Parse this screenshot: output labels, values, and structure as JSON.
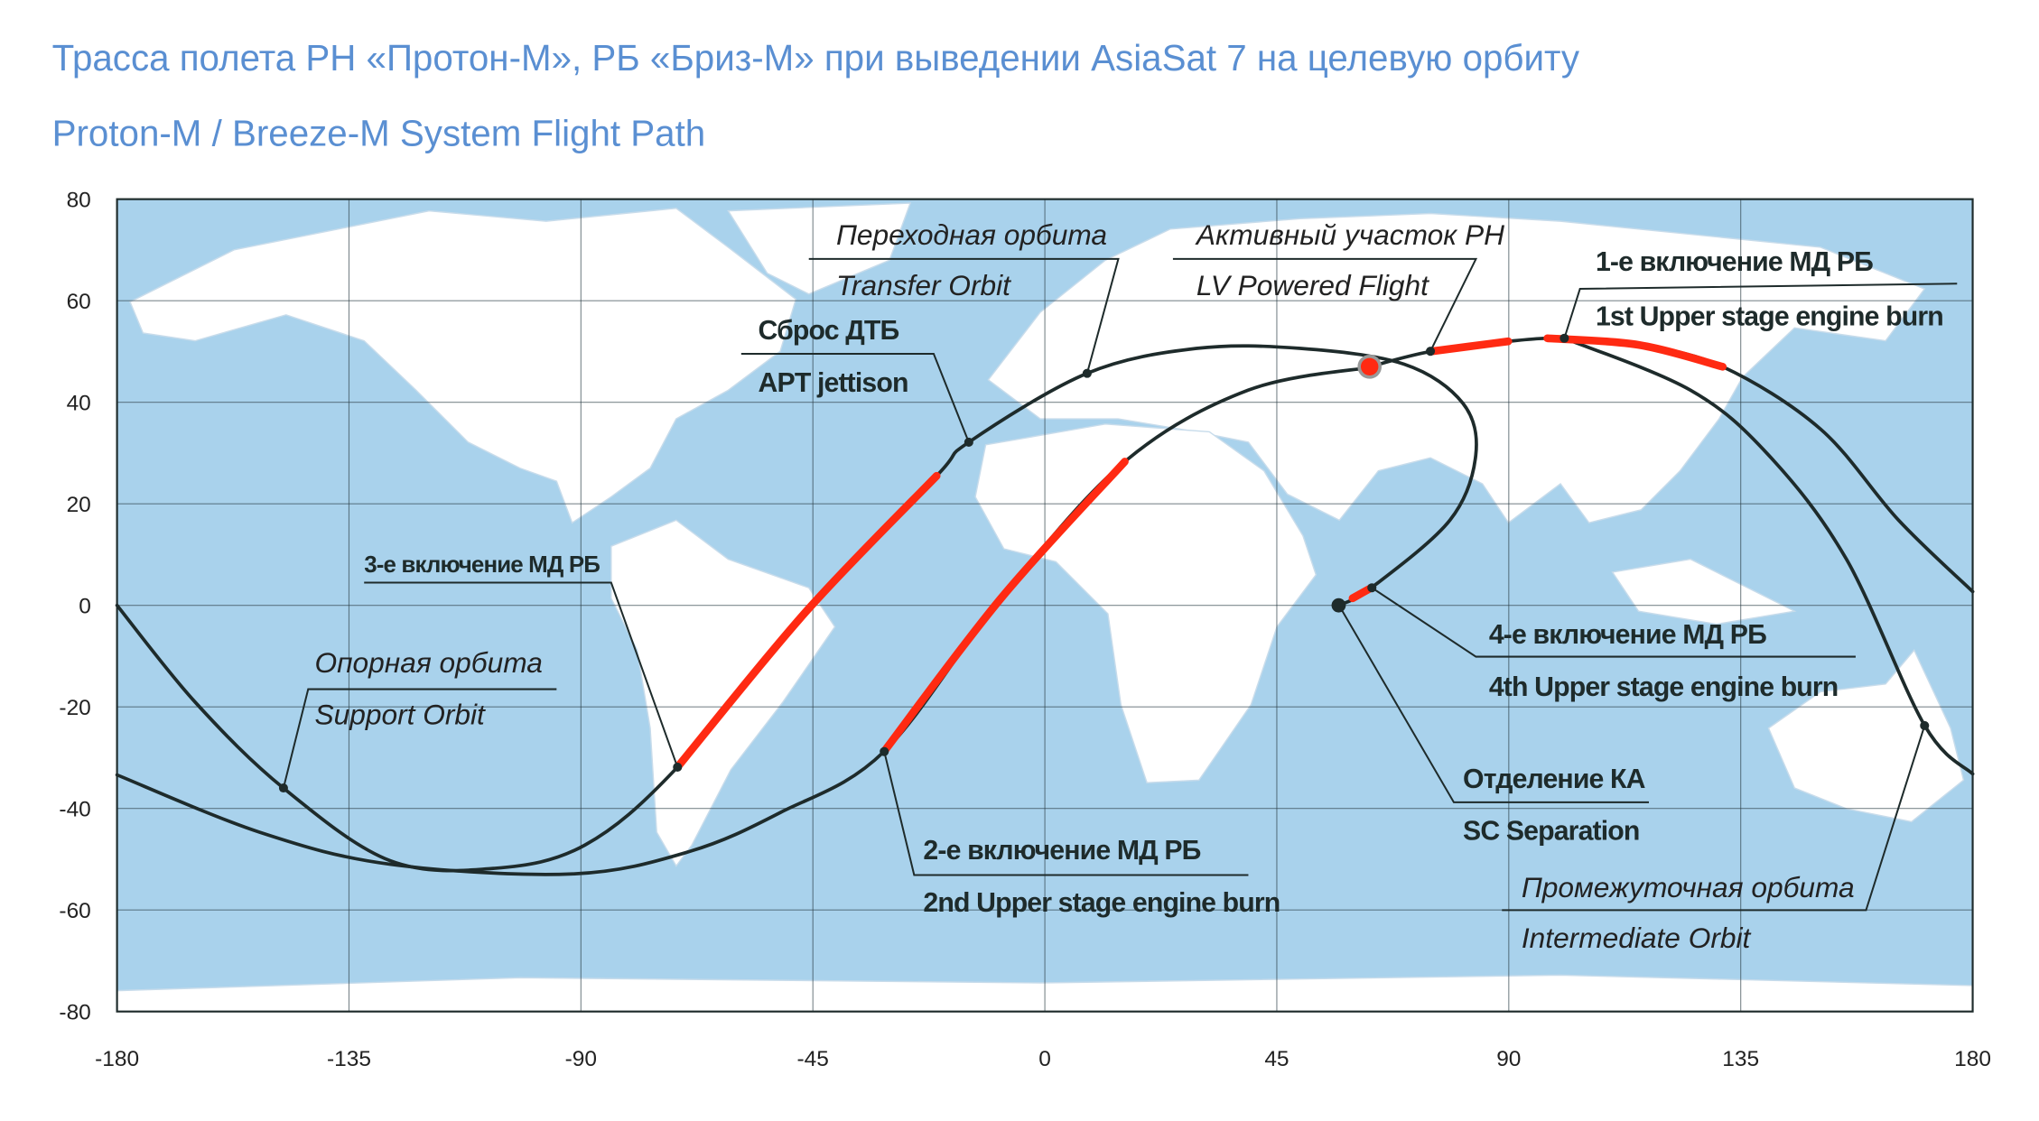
{
  "titles": {
    "ru": "Трасса полета РН «Протон-М», РБ «Бриз-М» при выведении AsiaSat 7 на целевую орбиту",
    "en": "Proton-M / Breeze-M System Flight Path"
  },
  "map": {
    "xlim": [
      -180,
      180
    ],
    "ylim": [
      -80,
      80
    ],
    "xticks": [
      -180,
      -135,
      -90,
      -45,
      0,
      45,
      90,
      135,
      180
    ],
    "yticks": [
      -80,
      -60,
      -40,
      -20,
      0,
      20,
      40,
      60,
      80
    ],
    "track_color": "#1e2b2b",
    "burn_color": "#ff2a12",
    "tracks": [
      {
        "lon": [
          63,
          74.8,
          89.9,
          100.8,
          115.2,
          131.5,
          150.5,
          165.6,
          180
        ],
        "lat": [
          47,
          50,
          52,
          52.6,
          51.3,
          47,
          34.7,
          16.8,
          2.7
        ]
      },
      {
        "lon": [
          -180,
          -164.9,
          -147.7,
          -127,
          -106.8,
          -89.2,
          -71.3,
          -46.3,
          -21,
          -14.8,
          8.2,
          29.4,
          49.6,
          69.7,
          81.1,
          83.6,
          78.6,
          63.4,
          57.1
        ],
        "lat": [
          0,
          -19,
          -36,
          -50.3,
          -51.8,
          -47.2,
          -31.9,
          -1.2,
          25.5,
          32.1,
          45.7,
          50.6,
          50.6,
          47.5,
          39.8,
          29.6,
          16.8,
          3.5,
          0
        ]
      },
      {
        "lon": [
          100.8,
          125.2,
          140.4,
          155.5,
          170.7,
          180
        ],
        "lat": [
          52.6,
          42.4,
          29.6,
          9.1,
          -23.7,
          -33.2
        ]
      },
      {
        "lon": [
          -180,
          -152.3,
          -127,
          -91.7,
          -69,
          -51.3,
          -31.2,
          -8.5,
          15.5,
          39.5,
          64
        ],
        "lat": [
          -33.4,
          -44.7,
          -51,
          -52.9,
          -48.5,
          -40.8,
          -28.8,
          1.4,
          28.3,
          42.4,
          47
        ]
      }
    ],
    "burns": [
      {
        "lon": [
          74.8,
          89.9,
          null,
          97.5,
          115.2,
          131.5
        ],
        "lat": [
          50,
          52,
          null,
          52.6,
          51.3,
          47
        ]
      },
      {
        "lon": [
          -31.2,
          -8.5,
          15.5
        ],
        "lat": [
          -28.8,
          1.4,
          28.3
        ]
      },
      {
        "lon": [
          -71.3,
          -46.3,
          -21
        ],
        "lat": [
          -31.9,
          -1.2,
          25.5
        ]
      },
      {
        "lon": [
          59.7,
          63.4
        ],
        "lat": [
          1.4,
          3.5
        ]
      }
    ],
    "launch": {
      "lon": 63,
      "lat": 47
    },
    "separation": {
      "lon": 57,
      "lat": 0
    }
  },
  "annotations": [
    {
      "ru": "Переходная орбита",
      "en": "Transfer Orbit"
    },
    {
      "ru": "Активный участок РН",
      "en": "LV Powered Flight"
    },
    {
      "ru": "1-е включение МД РБ",
      "en": "1st Upper stage engine burn"
    },
    {
      "ru": "Сброс ДТБ",
      "en": "APT jettison"
    },
    {
      "ru": "3-е включение МД РБ"
    },
    {
      "ru": "Опорная орбита",
      "en": "Support Orbit"
    },
    {
      "ru": "2-е включение МД РБ",
      "en": "2nd Upper stage engine burn"
    },
    {
      "ru": "4-е включение МД РБ",
      "en": "4th Upper stage engine burn"
    },
    {
      "ru": "Отделение КА",
      "en": "SC Separation"
    },
    {
      "ru": "Промежуточная орбита",
      "en": "Intermediate Orbit"
    }
  ]
}
